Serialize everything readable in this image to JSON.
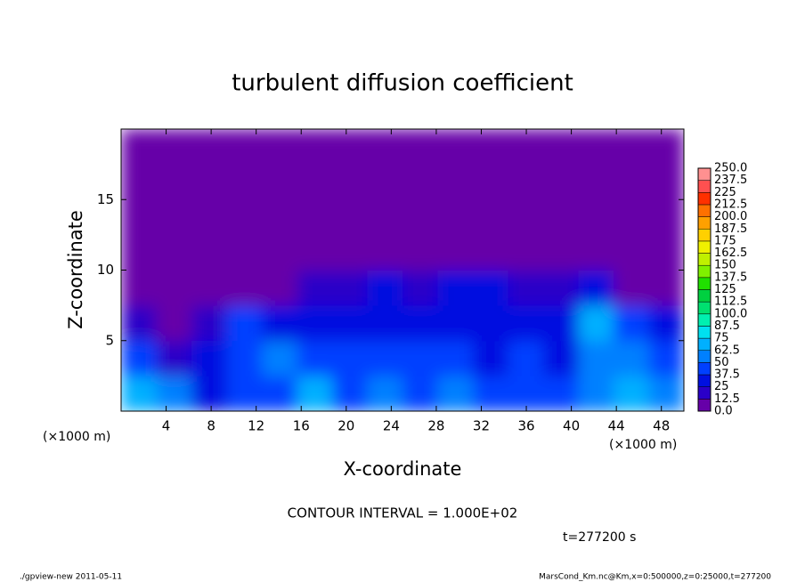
{
  "chart_data": {
    "type": "heatmap",
    "title": "turbulent diffusion coefficient",
    "xlabel": "X-coordinate",
    "ylabel": "Z-coordinate",
    "x_unit": "(×1000 m)",
    "x_unit_right": "(×1000 m)",
    "xlim": [
      0,
      50
    ],
    "xticks": [
      4,
      8,
      12,
      16,
      20,
      24,
      28,
      32,
      36,
      40,
      44,
      48
    ],
    "ylim": [
      0,
      20
    ],
    "yticks": [
      5,
      10,
      15
    ],
    "field": {
      "values": [
        [
          70,
          60,
          30,
          45,
          40,
          70,
          45,
          50,
          45,
          50,
          40,
          45,
          40,
          55,
          65,
          60
        ],
        [
          40,
          20,
          35,
          40,
          55,
          45,
          40,
          40,
          45,
          40,
          35,
          40,
          30,
          60,
          55,
          45
        ],
        [
          15,
          5,
          20,
          40,
          35,
          30,
          35,
          35,
          30,
          35,
          30,
          30,
          30,
          70,
          45,
          30
        ],
        [
          0,
          0,
          0,
          0,
          5,
          15,
          20,
          25,
          20,
          25,
          25,
          20,
          15,
          30,
          10,
          0
        ],
        [
          0,
          0,
          0,
          0,
          0,
          0,
          0,
          0,
          0,
          0,
          0,
          0,
          0,
          0,
          0,
          0
        ],
        [
          0,
          0,
          0,
          0,
          0,
          0,
          0,
          0,
          0,
          0,
          0,
          0,
          0,
          0,
          0,
          0
        ],
        [
          0,
          0,
          0,
          0,
          0,
          0,
          0,
          0,
          0,
          0,
          0,
          0,
          0,
          0,
          0,
          0
        ],
        [
          0,
          0,
          0,
          0,
          0,
          0,
          0,
          0,
          0,
          0,
          0,
          0,
          0,
          0,
          0,
          0
        ]
      ]
    },
    "colorbar": {
      "levels": [
        {
          "value": 0,
          "label": "0.0"
        },
        12.5,
        25,
        37.5,
        50,
        62.5,
        75,
        87.5,
        {
          "value": 100,
          "label": "100.0"
        },
        112.5,
        125,
        137.5,
        150,
        162.5,
        175,
        187.5,
        {
          "value": 200,
          "label": "200.0"
        },
        212.5,
        225,
        237.5,
        {
          "value": 250,
          "label": "250.0"
        }
      ],
      "colors": [
        "#6600a8",
        "#2a00c8",
        "#0010e0",
        "#0040ff",
        "#0080ff",
        "#00b0ff",
        "#00e0f0",
        "#00f0b0",
        "#00e070",
        "#00d040",
        "#20e000",
        "#80f000",
        "#c0f000",
        "#f0f000",
        "#ffd000",
        "#ffa000",
        "#ff7000",
        "#ff3000",
        "#ff5050",
        "#ff9090"
      ]
    },
    "annotation": "CONTOUR INTERVAL = 1.000E+02",
    "time": "t=277200 s",
    "footer_left": "./gpview-new   2011-05-11",
    "footer_right": "MarsCond_Km.nc@Km,x=0:500000,z=0:25000,t=277200"
  }
}
